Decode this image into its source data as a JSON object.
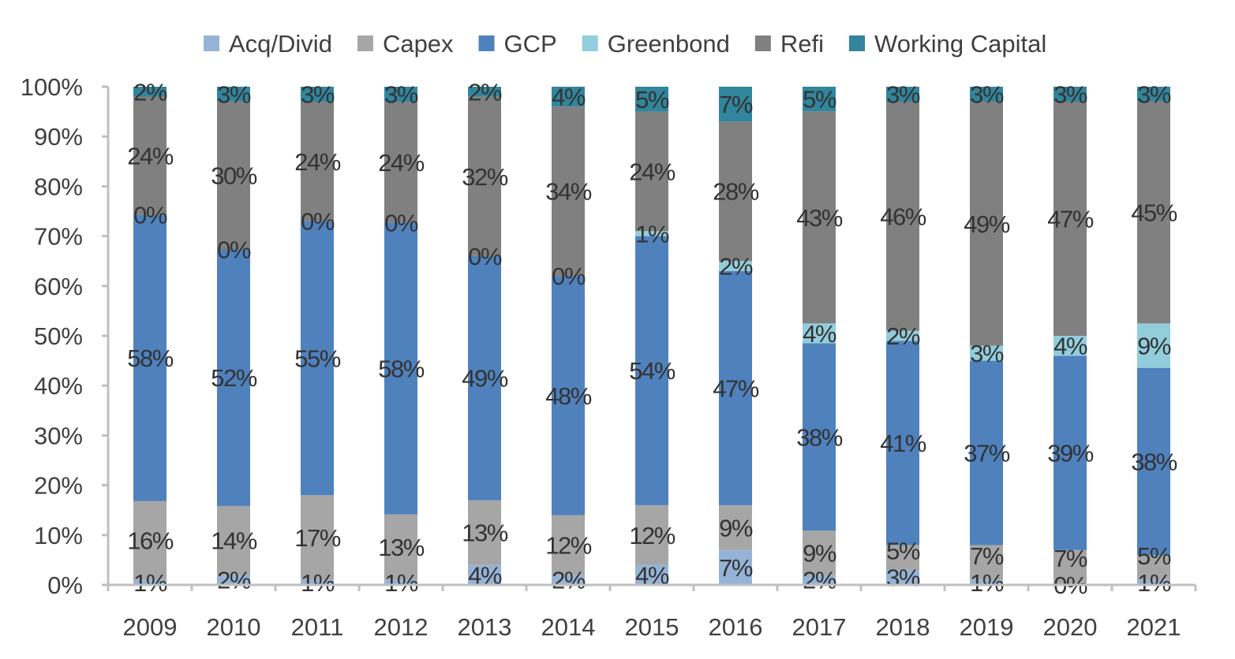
{
  "chart_data": {
    "type": "bar",
    "stacked": true,
    "percent_stacked": true,
    "title": "",
    "xlabel": "",
    "ylabel": "",
    "ylim": [
      0,
      100
    ],
    "yticks": [
      "0%",
      "10%",
      "20%",
      "30%",
      "40%",
      "50%",
      "60%",
      "70%",
      "80%",
      "90%",
      "100%"
    ],
    "legend_position": "top",
    "categories": [
      "2009",
      "2010",
      "2011",
      "2012",
      "2013",
      "2014",
      "2015",
      "2016",
      "2017",
      "2018",
      "2019",
      "2020",
      "2021"
    ],
    "series": [
      {
        "name": "Acq/Divid",
        "color": "#95b3d7",
        "values": [
          1,
          2,
          1,
          1,
          4,
          2,
          4,
          7,
          2,
          3,
          1,
          0,
          1
        ]
      },
      {
        "name": "Capex",
        "color": "#a6a6a6",
        "values": [
          16,
          14,
          17,
          13,
          13,
          12,
          12,
          9,
          9,
          5,
          7,
          7,
          5
        ]
      },
      {
        "name": "GCP",
        "color": "#4f81bd",
        "values": [
          58,
          52,
          55,
          58,
          49,
          48,
          54,
          47,
          38,
          41,
          37,
          39,
          38
        ]
      },
      {
        "name": "Greenbond",
        "color": "#92cddc",
        "values": [
          0,
          0,
          0,
          0,
          0,
          0,
          1,
          2,
          4,
          2,
          3,
          4,
          9
        ]
      },
      {
        "name": "Refi",
        "color": "#808080",
        "values": [
          24,
          30,
          24,
          24,
          32,
          34,
          24,
          28,
          43,
          46,
          49,
          47,
          45
        ]
      },
      {
        "name": "Working Capital",
        "color": "#31859c",
        "values": [
          2,
          3,
          3,
          3,
          2,
          4,
          5,
          7,
          5,
          3,
          3,
          3,
          3
        ]
      }
    ]
  }
}
